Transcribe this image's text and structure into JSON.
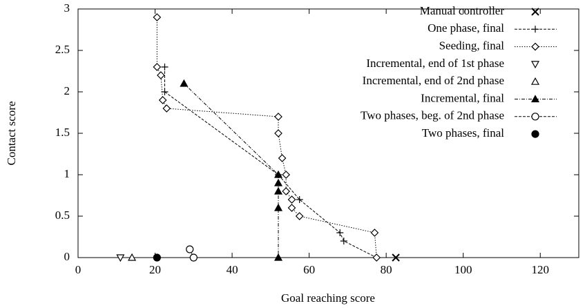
{
  "chart_data": {
    "type": "scatter",
    "x_label": "Goal reaching score",
    "y_label": "Contact score",
    "xlim": [
      0,
      130
    ],
    "ylim": [
      0,
      3
    ],
    "xticks": [
      0,
      20,
      40,
      60,
      80,
      100,
      120
    ],
    "yticks": [
      0,
      0.5,
      1,
      1.5,
      2,
      2.5,
      3
    ],
    "legend": "top-right",
    "series": [
      {
        "name": "Manual controller",
        "color": "#000000",
        "marker": "x",
        "line": "none",
        "x": [
          82.5
        ],
        "values": [
          0
        ]
      },
      {
        "name": "One phase, final",
        "color": "#000000",
        "marker": "plus",
        "line": "dashed",
        "x": [
          22.5,
          22.5,
          52,
          57.5,
          68,
          69,
          77.5
        ],
        "values": [
          2.3,
          2.0,
          1.0,
          0.7,
          0.3,
          0.2,
          0
        ]
      },
      {
        "name": "Seeding, final",
        "color": "#000000",
        "marker": "diamond",
        "line": "dotted",
        "x": [
          20.5,
          20.5,
          21.5,
          22,
          23,
          52,
          52,
          53,
          54,
          54,
          55.5,
          55.5,
          57.5,
          77,
          77.5
        ],
        "values": [
          2.9,
          2.3,
          2.2,
          1.9,
          1.8,
          1.7,
          1.5,
          1.2,
          1.0,
          0.8,
          0.7,
          0.6,
          0.5,
          0.3,
          0
        ]
      },
      {
        "name": "Incremental, end of 1st phase",
        "color": "#000000",
        "marker": "triangle-down",
        "line": "none",
        "x": [
          11
        ],
        "values": [
          0
        ]
      },
      {
        "name": "Incremental, end of 2nd phase",
        "color": "#000000",
        "marker": "triangle-up",
        "line": "none",
        "x": [
          14
        ],
        "values": [
          0
        ]
      },
      {
        "name": "Incremental, final",
        "color": "#000000",
        "marker": "triangle-filled",
        "line": "dash-dot",
        "x": [
          27.5,
          52,
          52,
          52,
          52,
          52
        ],
        "values": [
          2.1,
          1.0,
          0.9,
          0.8,
          0.6,
          0
        ]
      },
      {
        "name": "Two phases, beg. of 2nd phase",
        "color": "#000000",
        "marker": "circle",
        "line": "dashed",
        "x": [
          29,
          30
        ],
        "values": [
          0.1,
          0
        ]
      },
      {
        "name": "Two phases, final",
        "color": "#000000",
        "marker": "circle-filled",
        "line": "none",
        "x": [
          20.5
        ],
        "values": [
          0
        ]
      }
    ]
  }
}
